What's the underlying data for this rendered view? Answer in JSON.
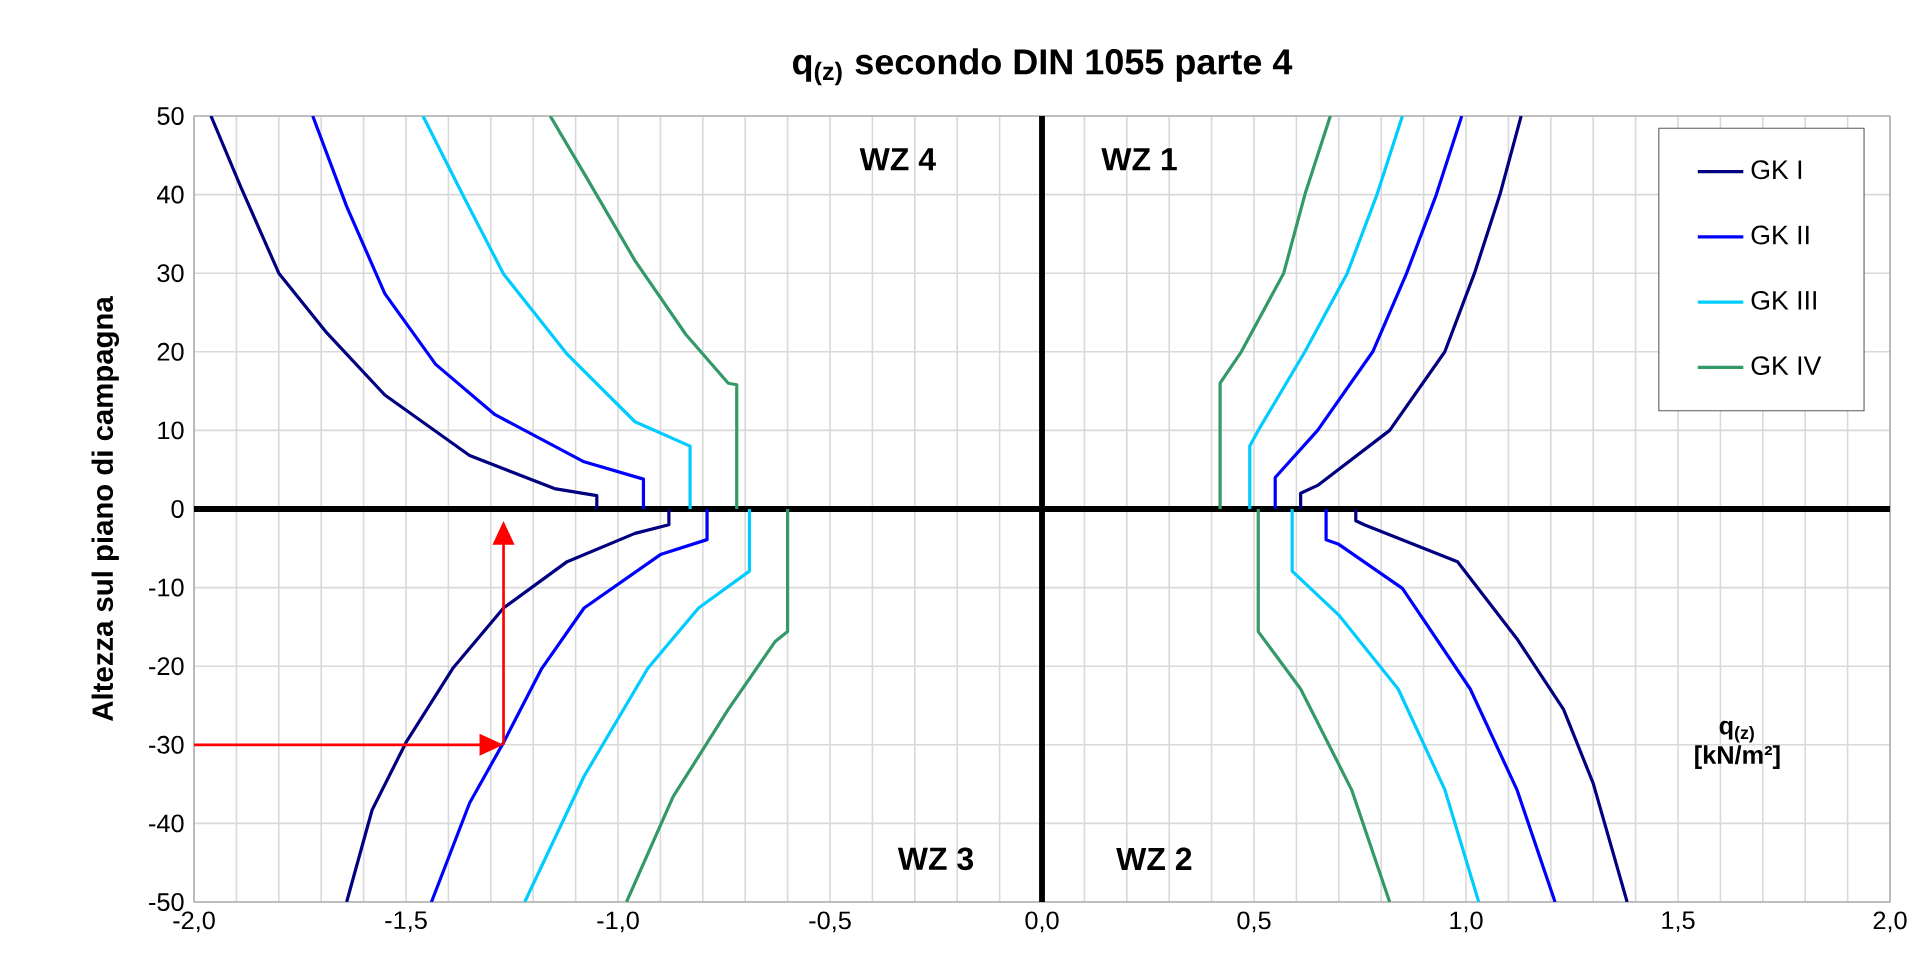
{
  "chart_data": {
    "type": "line",
    "title": "q$_{(z)}$ secondo DIN 1055 parte 4",
    "ylabel": "Altezza sul piano di campagna",
    "xlabel": "q$_{(z)}$ [kN/m²]",
    "xlim": [
      -2,
      2
    ],
    "ylim": [
      -50,
      50
    ],
    "xticks": [
      {
        "value": -2,
        "label": "-2,0"
      },
      {
        "value": -1.5,
        "label": "-1,5"
      },
      {
        "value": -1,
        "label": "-1,0"
      },
      {
        "value": -0.5,
        "label": "-0,5"
      },
      {
        "value": 0,
        "label": "0,0"
      },
      {
        "value": 0.5,
        "label": "0,5"
      },
      {
        "value": 1,
        "label": "1,0"
      },
      {
        "value": 1.5,
        "label": "1,5"
      },
      {
        "value": 2,
        "label": "2,0"
      }
    ],
    "yticks": [
      50,
      40,
      30,
      20,
      10,
      0,
      -10,
      -20,
      -30,
      -40,
      -50
    ],
    "grid": true,
    "legend": "top right",
    "marker": "none",
    "line_style": "solid",
    "annotations": [
      "WZ 4",
      "WZ 1",
      "WZ 3",
      "WZ 2"
    ],
    "series": [
      {
        "name": "GK I",
        "color": "#000080",
        "x": [
          0.61,
          0.61,
          0.65,
          0.82,
          0.95,
          1.02,
          1.08,
          1.13,
          null,
          0.74,
          0.74,
          0.76,
          0.98,
          1.12,
          1.23,
          1.3,
          1.38,
          null,
          -0.88,
          -0.88,
          -0.96,
          -1.12,
          -1.27,
          -1.39,
          -1.5,
          -1.58,
          -1.64,
          null,
          -1.05,
          -1.05,
          -1.15,
          -1.35,
          -1.55,
          -1.69,
          -1.8,
          -1.89,
          -1.96
        ],
        "values": [
          0,
          2,
          3,
          10,
          20,
          30,
          40,
          50,
          null,
          0,
          -1.5,
          -2,
          -6.7,
          -16.5,
          -25.5,
          -34.9,
          -50,
          null,
          0,
          -2,
          -3.1,
          -6.7,
          -12.6,
          -20.3,
          -29.7,
          -38.3,
          -50,
          null,
          0,
          1.7,
          2.6,
          6.8,
          14.5,
          22.6,
          30,
          41,
          50
        ]
      },
      {
        "name": "GK II",
        "color": "#0000ff",
        "x": [
          0.55,
          0.55,
          0.65,
          0.78,
          0.86,
          0.93,
          0.99,
          null,
          0.67,
          0.67,
          0.7,
          0.85,
          1.01,
          1.12,
          1.21,
          null,
          -0.79,
          -0.79,
          -0.9,
          -1.08,
          -1.18,
          -1.27,
          -1.35,
          -1.44,
          null,
          -0.94,
          -0.94,
          -1.08,
          -1.29,
          -1.43,
          -1.55,
          -1.64,
          -1.72
        ],
        "values": [
          0,
          4,
          10,
          20,
          30,
          40,
          50,
          null,
          0,
          -3.9,
          -4.5,
          -10.1,
          -22.9,
          -35.7,
          -50,
          null,
          0,
          -3.9,
          -5.8,
          -12.6,
          -20.3,
          -29.7,
          -37.4,
          -50,
          null,
          0,
          3.8,
          6,
          12,
          18.4,
          27.4,
          38.5,
          50
        ]
      },
      {
        "name": "GK III",
        "color": "#00ccff",
        "x": [
          0.49,
          0.49,
          0.51,
          0.62,
          0.72,
          0.79,
          0.85,
          null,
          0.59,
          0.59,
          0.7,
          0.84,
          0.95,
          1.03,
          null,
          -0.69,
          -0.69,
          -0.81,
          -0.93,
          -1.08,
          -1.22,
          null,
          -0.83,
          -0.83,
          -0.96,
          -1.12,
          -1.27,
          -1.36,
          -1.46
        ],
        "values": [
          0,
          8,
          10,
          20,
          30,
          40,
          50,
          null,
          0,
          -7.9,
          -13.5,
          -22.9,
          -35.7,
          -50,
          null,
          0,
          -7.9,
          -12.6,
          -20.3,
          -34,
          -50,
          null,
          0,
          8,
          11.1,
          19.7,
          29.9,
          39.3,
          50
        ]
      },
      {
        "name": "GK IV",
        "color": "#339966",
        "x": [
          0.42,
          0.42,
          0.47,
          0.57,
          0.62,
          0.68,
          null,
          0.51,
          0.51,
          0.61,
          0.73,
          0.82,
          null,
          -0.6,
          -0.6,
          -0.63,
          -0.74,
          -0.87,
          -0.98,
          null,
          -0.72,
          -0.72,
          -0.74,
          -0.84,
          -0.96,
          -1.08,
          -1.16
        ],
        "values": [
          0,
          16,
          20,
          30,
          40,
          50,
          null,
          0,
          -15.6,
          -22.9,
          -35.7,
          -50,
          null,
          0,
          -15.6,
          -16.9,
          -25.5,
          -36.6,
          -50,
          null,
          0,
          15.8,
          16,
          22.2,
          31.6,
          42.7,
          50
        ]
      }
    ]
  }
}
